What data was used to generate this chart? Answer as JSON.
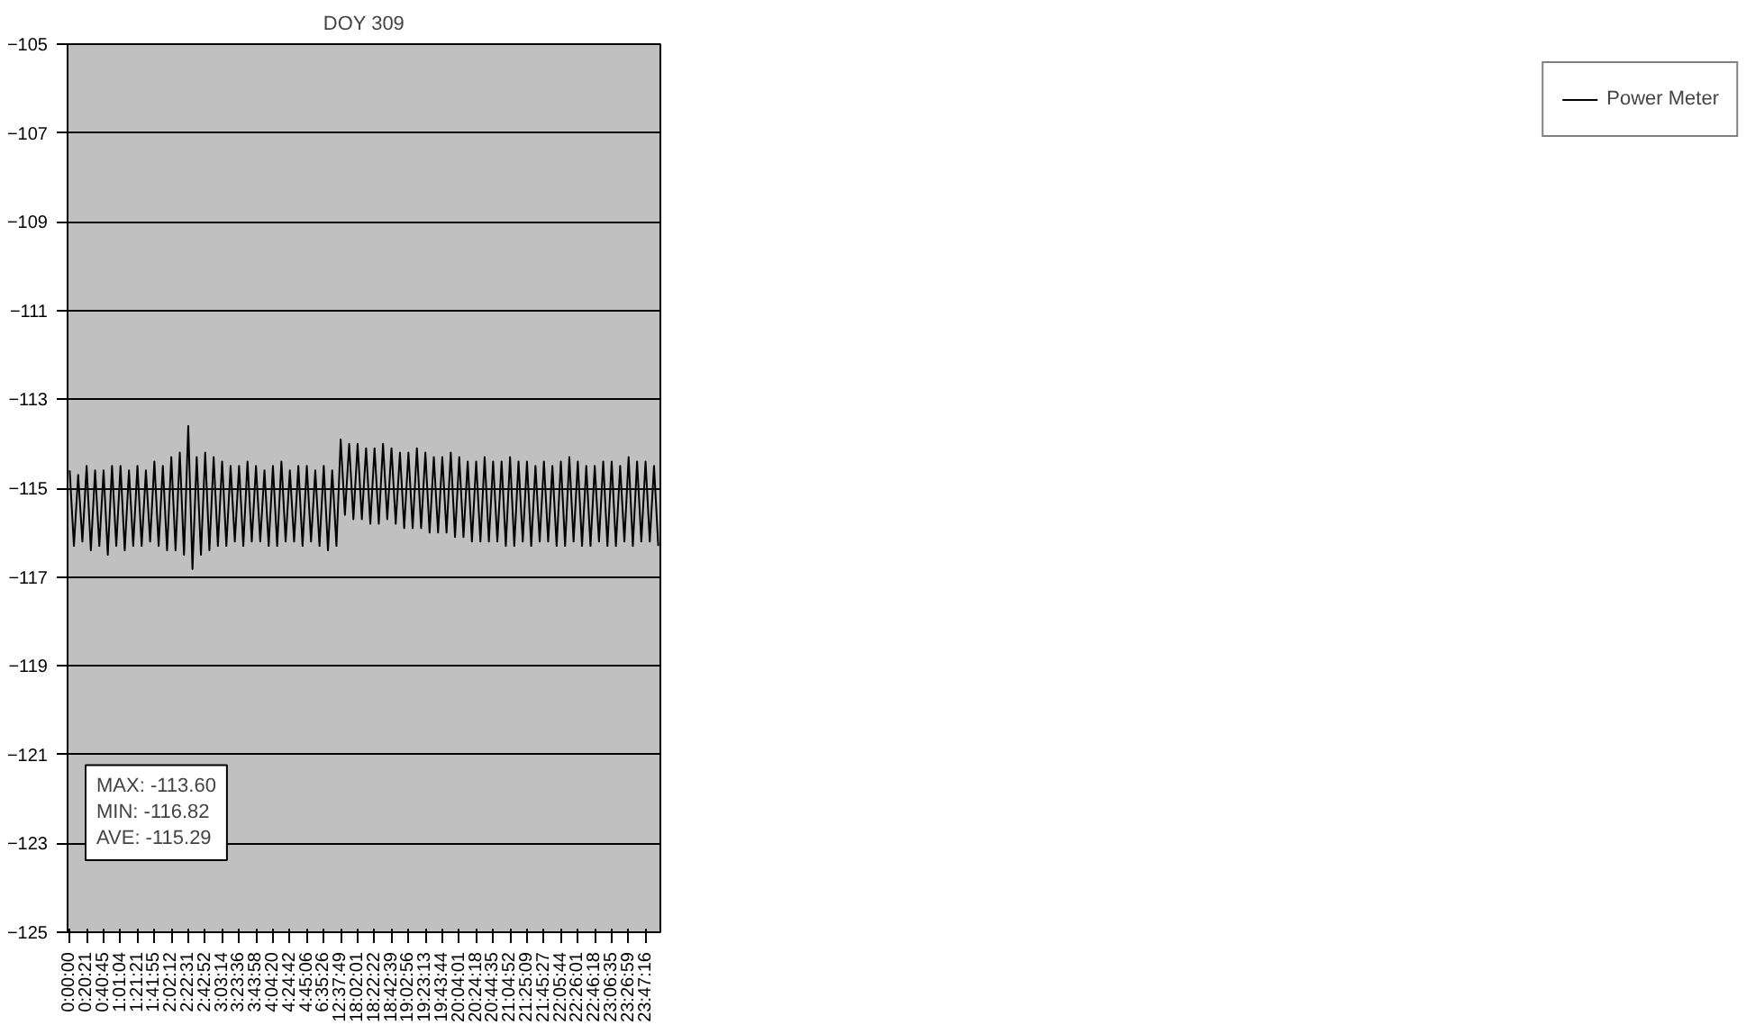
{
  "chart_data": {
    "type": "line",
    "title": "DOY 309",
    "categories": [
      "0:00:00",
      null,
      null,
      null,
      "0:20:21",
      null,
      null,
      null,
      "0:40:45",
      null,
      null,
      null,
      "1:01:04",
      null,
      null,
      null,
      "1:21:21",
      null,
      null,
      null,
      "1:41:55",
      null,
      null,
      null,
      "2:02:12",
      null,
      null,
      null,
      "2:22:31",
      null,
      null,
      null,
      "2:42:52",
      null,
      null,
      null,
      "3:03:14",
      null,
      null,
      null,
      "3:23:36",
      null,
      null,
      null,
      "3:43:58",
      null,
      null,
      null,
      "4:04:20",
      null,
      null,
      null,
      "4:24:42",
      null,
      null,
      null,
      "4:45:06",
      null,
      null,
      null,
      "6:35:26",
      null,
      null,
      null,
      "12:37:49",
      null,
      null,
      null,
      "18:02:01",
      null,
      null,
      null,
      "18:22:22",
      null,
      null,
      null,
      "18:42:39",
      null,
      null,
      null,
      "19:02:56",
      null,
      null,
      null,
      "19:23:13",
      null,
      null,
      null,
      "19:43:44",
      null,
      null,
      null,
      "20:04:01",
      null,
      null,
      null,
      "20:24:18",
      null,
      null,
      null,
      "20:44:35",
      null,
      null,
      null,
      "21:04:52",
      null,
      null,
      null,
      "21:25:09",
      null,
      null,
      null,
      "21:45:27",
      null,
      null,
      null,
      "22:05:44",
      null,
      null,
      null,
      "22:26:01",
      null,
      null,
      null,
      "22:46:18",
      null,
      null,
      null,
      "23:06:35",
      null,
      null,
      null,
      "23:26:59",
      null,
      null,
      null,
      "23:47:16",
      null,
      null,
      null
    ],
    "series": [
      {
        "name": "Power Meter",
        "color": "#000000",
        "values": [
          -114.6,
          -116.3,
          -114.7,
          -116.2,
          -114.5,
          -116.4,
          -114.6,
          -116.3,
          -114.6,
          -116.5,
          -114.5,
          -116.3,
          -114.5,
          -116.4,
          -114.6,
          -116.3,
          -114.5,
          -116.3,
          -114.6,
          -116.2,
          -114.4,
          -116.3,
          -114.5,
          -116.4,
          -114.3,
          -116.4,
          -114.2,
          -116.5,
          -113.6,
          -116.82,
          -114.3,
          -116.5,
          -114.2,
          -116.4,
          -114.3,
          -116.3,
          -114.4,
          -116.3,
          -114.5,
          -116.2,
          -114.5,
          -116.3,
          -114.4,
          -116.2,
          -114.5,
          -116.2,
          -114.6,
          -116.3,
          -114.5,
          -116.3,
          -114.4,
          -116.2,
          -114.6,
          -116.2,
          -114.5,
          -116.3,
          -114.5,
          -116.2,
          -114.6,
          -116.3,
          -114.5,
          -116.4,
          -114.6,
          -116.3,
          -113.9,
          -115.6,
          -114.0,
          -115.7,
          -114.0,
          -115.7,
          -114.1,
          -115.8,
          -114.1,
          -115.8,
          -114.0,
          -115.7,
          -114.1,
          -115.8,
          -114.2,
          -115.9,
          -114.2,
          -115.9,
          -114.1,
          -115.9,
          -114.2,
          -116.0,
          -114.3,
          -116.0,
          -114.3,
          -116.0,
          -114.2,
          -116.1,
          -114.3,
          -116.1,
          -114.4,
          -116.2,
          -114.4,
          -116.2,
          -114.3,
          -116.2,
          -114.4,
          -116.2,
          -114.4,
          -116.3,
          -114.3,
          -116.3,
          -114.4,
          -116.2,
          -114.4,
          -116.3,
          -114.5,
          -116.2,
          -114.4,
          -116.2,
          -114.5,
          -116.3,
          -114.4,
          -116.3,
          -114.3,
          -116.2,
          -114.4,
          -116.3,
          -114.5,
          -116.3,
          -114.5,
          -116.2,
          -114.4,
          -116.3,
          -114.4,
          -116.3,
          -114.5,
          -116.2,
          -114.3,
          -116.3,
          -114.4,
          -116.2,
          -114.4,
          -116.2,
          -114.5,
          -116.3
        ]
      }
    ],
    "annotations": [
      "MAX: -113.60",
      "MIN: -116.82",
      "AVE: -115.29"
    ],
    "ylim": [
      -125,
      -105
    ],
    "yticks": [
      -125,
      -123,
      -121,
      -119,
      -117,
      -115,
      -113,
      -111,
      -109,
      -107,
      -105
    ],
    "grid": "y",
    "legend": "right",
    "marker": "none",
    "line_style": "solid"
  }
}
